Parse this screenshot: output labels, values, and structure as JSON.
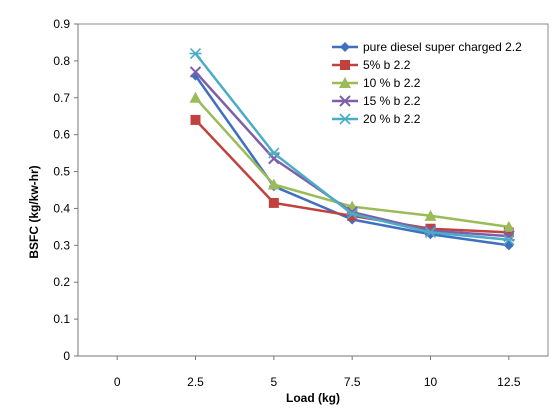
{
  "chart_data": {
    "type": "line",
    "title": "",
    "xlabel": "Load (kg)",
    "ylabel": "BSFC (kg/kw-hr)",
    "x_ticks": [
      "0",
      "2.5",
      "5",
      "7.5",
      "10",
      "12.5"
    ],
    "y_ticks": [
      "0",
      "0.1",
      "0.2",
      "0.3",
      "0.4",
      "0.5",
      "0.6",
      "0.7",
      "0.8",
      "0.9"
    ],
    "xlim": [
      -1.25,
      13.75
    ],
    "ylim": [
      0,
      0.9
    ],
    "grid": false,
    "legend_position": "top-right",
    "x": [
      2.5,
      5,
      7.5,
      10,
      12.5
    ],
    "series": [
      {
        "name": "pure diesel super charged 2.2",
        "values": [
          0.76,
          0.46,
          0.37,
          0.33,
          0.3
        ],
        "color": "#3F6FBF",
        "marker": "diamond"
      },
      {
        "name": "5% b 2.2",
        "values": [
          0.64,
          0.415,
          0.38,
          0.345,
          0.335
        ],
        "color": "#C0423F",
        "marker": "square"
      },
      {
        "name": "10 % b 2.2",
        "values": [
          0.7,
          0.465,
          0.405,
          0.38,
          0.35
        ],
        "color": "#9BBB59",
        "marker": "triangle"
      },
      {
        "name": "15 % b 2.2",
        "values": [
          0.77,
          0.535,
          0.39,
          0.34,
          0.325
        ],
        "color": "#7E5FA8",
        "marker": "x"
      },
      {
        "name": "20 % b 2.2",
        "values": [
          0.82,
          0.55,
          0.385,
          0.335,
          0.315
        ],
        "color": "#4BACC6",
        "marker": "asterisk"
      }
    ]
  }
}
